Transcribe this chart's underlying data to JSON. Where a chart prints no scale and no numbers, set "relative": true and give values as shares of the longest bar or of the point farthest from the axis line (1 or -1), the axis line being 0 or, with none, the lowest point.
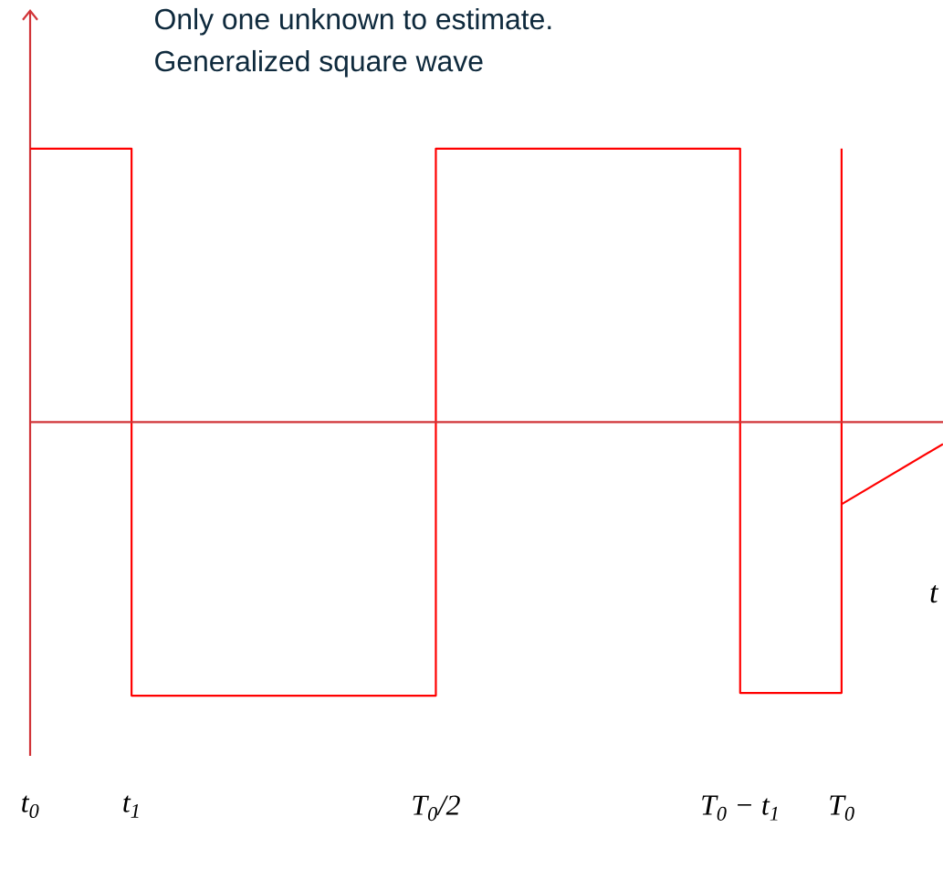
{
  "chart_data": {
    "type": "step",
    "title": "Only one unknown to estimate.",
    "subtitle": "Generalized square wave",
    "xlabel": "t",
    "relative": true,
    "ref_lines": [
      {
        "axis": "y",
        "value": 0,
        "color": "#d13438"
      }
    ],
    "categories": [
      "t$_{0}$",
      "t$_{1}$",
      null,
      null,
      "T$_{0}$/2",
      null,
      null,
      "T$_{0}$ − t$_{1}$",
      "T$_{0}$",
      null
    ],
    "series": [
      {
        "color": "#ff0000",
        "values": [
          1,
          -1,
          -1,
          -1,
          1,
          1,
          1,
          -0.99,
          1,
          null
        ]
      },
      {
        "type": "line",
        "color": "#ff0000",
        "values": [
          null,
          null,
          null,
          null,
          null,
          null,
          null,
          null,
          -0.3,
          -0.08
        ]
      }
    ]
  }
}
